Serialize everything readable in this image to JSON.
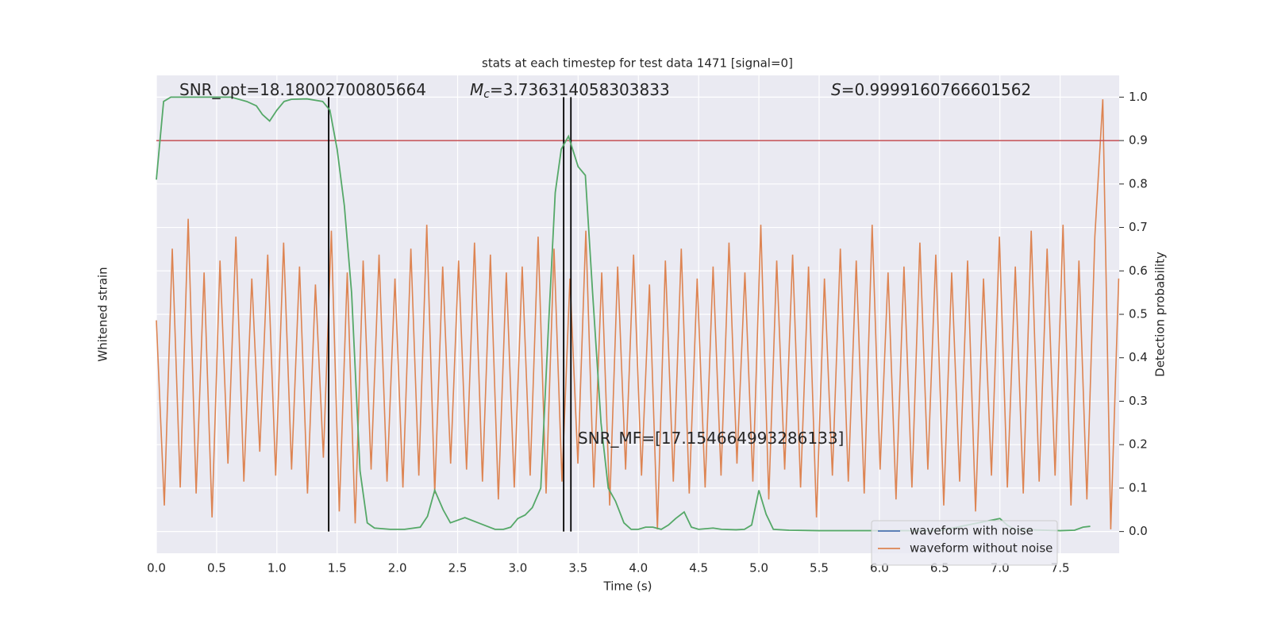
{
  "chart_data": {
    "type": "line",
    "title": "stats at each timestep for test data 1471 [signal=0]",
    "xlabel": "Time (s)",
    "ylabel": "Whitened strain",
    "y2label": "Detection probability",
    "xlim": [
      0,
      7.99
    ],
    "xticks": [
      {
        "value": 0,
        "label": "0.0"
      },
      0.5,
      {
        "value": 1,
        "label": "1.0"
      },
      1.5,
      {
        "value": 2,
        "label": "2.0"
      },
      2.5,
      {
        "value": 3,
        "label": "3.0"
      },
      3.5,
      {
        "value": 4,
        "label": "4.0"
      },
      4.5,
      {
        "value": 5,
        "label": "5.0"
      },
      5.5,
      {
        "value": 6,
        "label": "6.0"
      },
      6.5,
      {
        "value": 7,
        "label": "7.0"
      },
      7.5
    ],
    "ylim": [
      -3,
      5
    ],
    "y2lim": [
      -0.05,
      1.05
    ],
    "y2ticks": [
      {
        "value": 0,
        "label": "0.0"
      },
      0.1,
      0.2,
      0.3,
      0.4,
      0.5,
      0.6,
      0.7,
      0.8,
      0.9,
      {
        "value": 1,
        "label": "1.0"
      }
    ],
    "grid": true,
    "legend": "lower right",
    "series": [
      {
        "name": "waveform with noise",
        "color": "#4c72b0"
      },
      {
        "name": "waveform without noise",
        "color": "#dd8452",
        "x": [
          0,
          0.066,
          0.132,
          0.198,
          0.264,
          0.33,
          0.396,
          0.462,
          0.528,
          0.594,
          0.66,
          0.726,
          0.792,
          0.858,
          0.924,
          0.99,
          1.056,
          1.122,
          1.188,
          1.254,
          1.32,
          1.386,
          1.452,
          1.518,
          1.584,
          1.65,
          1.716,
          1.782,
          1.848,
          1.914,
          1.98,
          2.046,
          2.112,
          2.178,
          2.244,
          2.31,
          2.376,
          2.442,
          2.508,
          2.574,
          2.64,
          2.706,
          2.772,
          2.838,
          2.904,
          2.97,
          3.036,
          3.102,
          3.168,
          3.234,
          3.3,
          3.366,
          3.432,
          3.498,
          3.564,
          3.63,
          3.696,
          3.762,
          3.828,
          3.894,
          3.96,
          4.026,
          4.092,
          4.158,
          4.224,
          4.29,
          4.356,
          4.422,
          4.488,
          4.554,
          4.62,
          4.686,
          4.752,
          4.818,
          4.884,
          4.95,
          5.016,
          5.082,
          5.148,
          5.214,
          5.28,
          5.346,
          5.412,
          5.478,
          5.544,
          5.61,
          5.676,
          5.742,
          5.808,
          5.874,
          5.94,
          6.006,
          6.072,
          6.138,
          6.204,
          6.27,
          6.336,
          6.402,
          6.468,
          6.534,
          6.6,
          6.666,
          6.732,
          6.798,
          6.864,
          6.93,
          6.996,
          7.062,
          7.128,
          7.194,
          7.26,
          7.326,
          7.392,
          7.458,
          7.524,
          7.59,
          7.656,
          7.722,
          7.788,
          7.854,
          7.92,
          7.986
        ],
        "values": [
          0.9,
          -2.2,
          2.1,
          -1.9,
          2.6,
          -2.0,
          1.7,
          -2.4,
          1.9,
          -1.5,
          2.3,
          -1.8,
          1.6,
          -1.3,
          2.0,
          -1.7,
          2.2,
          -1.6,
          1.8,
          -2.0,
          1.5,
          -1.4,
          2.4,
          -2.3,
          1.7,
          -2.5,
          1.9,
          -1.6,
          2.0,
          -1.8,
          1.6,
          -1.9,
          2.1,
          -1.7,
          2.5,
          -2.0,
          1.8,
          -1.5,
          1.9,
          -1.6,
          2.2,
          -1.8,
          2.0,
          -2.1,
          1.7,
          -1.9,
          1.8,
          -1.7,
          2.3,
          -2.0,
          2.1,
          -1.8,
          1.6,
          -1.5,
          2.4,
          -1.9,
          1.7,
          -2.2,
          1.8,
          -1.6,
          2.0,
          -1.7,
          1.5,
          -2.6,
          1.9,
          -1.8,
          2.1,
          -2.0,
          1.6,
          -1.9,
          1.8,
          -1.7,
          2.2,
          -1.5,
          1.7,
          -1.8,
          2.5,
          -2.1,
          1.9,
          -1.6,
          2.0,
          -1.9,
          1.8,
          -2.4,
          1.6,
          -1.7,
          2.1,
          -1.8,
          1.9,
          -2.0,
          2.5,
          -1.6,
          1.7,
          -2.1,
          1.8,
          -1.9,
          2.2,
          -1.6,
          2.0,
          -2.2,
          1.7,
          -1.8,
          1.9,
          -2.3,
          1.6,
          -1.7,
          2.3,
          -1.9,
          1.8,
          -2.0,
          2.4,
          -1.8,
          2.1,
          -1.7,
          2.5,
          -2.2,
          1.9,
          -2.1,
          2.3,
          4.6,
          -2.6,
          1.6
        ]
      },
      {
        "color": "#55a868",
        "axis": "y2",
        "x": [
          0,
          0.06,
          0.12,
          0.25,
          0.5,
          0.62,
          0.75,
          0.83,
          0.88,
          0.94,
          1.0,
          1.06,
          1.12,
          1.25,
          1.38,
          1.44,
          1.5,
          1.56,
          1.62,
          1.69,
          1.75,
          1.81,
          1.94,
          2.06,
          2.19,
          2.25,
          2.31,
          2.38,
          2.44,
          2.56,
          2.69,
          2.81,
          2.88,
          2.94,
          3.0,
          3.06,
          3.12,
          3.19,
          3.25,
          3.31,
          3.36,
          3.42,
          3.5,
          3.56,
          3.62,
          3.69,
          3.75,
          3.81,
          3.88,
          3.94,
          4.0,
          4.06,
          4.12,
          4.19,
          4.25,
          4.31,
          4.38,
          4.44,
          4.5,
          4.62,
          4.69,
          4.81,
          4.88,
          4.94,
          5.0,
          5.06,
          5.12,
          5.25,
          5.5,
          6.0,
          6.5,
          7.0,
          7.06,
          7.12,
          7.5,
          7.62,
          7.69,
          7.75
        ],
        "values": [
          0.81,
          0.99,
          1.0,
          1.0,
          1.0,
          1.0,
          0.99,
          0.98,
          0.96,
          0.945,
          0.97,
          0.99,
          0.995,
          0.996,
          0.99,
          0.97,
          0.88,
          0.75,
          0.55,
          0.14,
          0.02,
          0.008,
          0.005,
          0.005,
          0.01,
          0.035,
          0.095,
          0.05,
          0.02,
          0.032,
          0.018,
          0.005,
          0.005,
          0.01,
          0.03,
          0.038,
          0.055,
          0.1,
          0.45,
          0.78,
          0.88,
          0.91,
          0.84,
          0.82,
          0.55,
          0.25,
          0.1,
          0.07,
          0.02,
          0.005,
          0.005,
          0.01,
          0.01,
          0.005,
          0.015,
          0.03,
          0.045,
          0.01,
          0.005,
          0.008,
          0.005,
          0.004,
          0.005,
          0.015,
          0.095,
          0.04,
          0.005,
          0.003,
          0.002,
          0.002,
          0.002,
          0.03,
          0.015,
          0.005,
          0.002,
          0.003,
          0.01,
          0.012
        ]
      }
    ],
    "hline": {
      "axis": "y2",
      "value": 0.9,
      "color": "#c44e52"
    },
    "vlines": [
      1.43,
      3.38,
      3.44
    ],
    "annotations": [
      {
        "parts": [
          "SNR_opt=18.18002700805664"
        ]
      },
      {
        "parts": [
          "M",
          "c",
          "=3.736314058303833"
        ]
      },
      {
        "parts": [
          "S",
          "=0.9999160766601562"
        ]
      },
      {
        "parts": [
          "SNR_MF=[17.154664993286133]"
        ]
      }
    ]
  }
}
